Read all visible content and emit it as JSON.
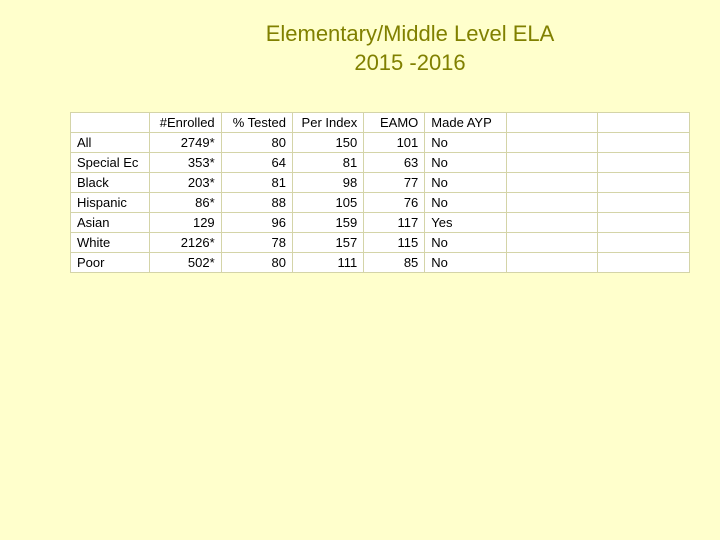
{
  "title": {
    "line1": "Elementary/Middle Level ELA",
    "line2": "2015 -2016"
  },
  "table": {
    "columns": [
      "#Enrolled",
      "% Tested",
      "Per Index",
      "EAMO",
      "Made AYP"
    ],
    "rows": [
      {
        "label": "All",
        "enrolled": "2749*",
        "tested": "80",
        "perindex": "150",
        "eamo": "101",
        "madeayp": "No"
      },
      {
        "label": "Special Ec",
        "enrolled": "353*",
        "tested": "64",
        "perindex": "81",
        "eamo": "63",
        "madeayp": "No"
      },
      {
        "label": "Black",
        "enrolled": "203*",
        "tested": "81",
        "perindex": "98",
        "eamo": "77",
        "madeayp": "No"
      },
      {
        "label": "Hispanic",
        "enrolled": "86*",
        "tested": "88",
        "perindex": "105",
        "eamo": "76",
        "madeayp": "No"
      },
      {
        "label": "Asian",
        "enrolled": "129",
        "tested": "96",
        "perindex": "159",
        "eamo": "117",
        "madeayp": "Yes"
      },
      {
        "label": "White",
        "enrolled": "2126*",
        "tested": "78",
        "perindex": "157",
        "eamo": "115",
        "madeayp": "No"
      },
      {
        "label": "Poor",
        "enrolled": "502*",
        "tested": "80",
        "perindex": "111",
        "eamo": "85",
        "madeayp": "No"
      }
    ],
    "colors": {
      "page_background": "#ffffcc",
      "title_color": "#808000",
      "table_background": "#ffffff",
      "border_color": "#d4d4a8",
      "text_color": "#000000"
    },
    "typography": {
      "title_fontsize": 22,
      "table_fontsize": 13,
      "font_family": "Arial"
    }
  }
}
